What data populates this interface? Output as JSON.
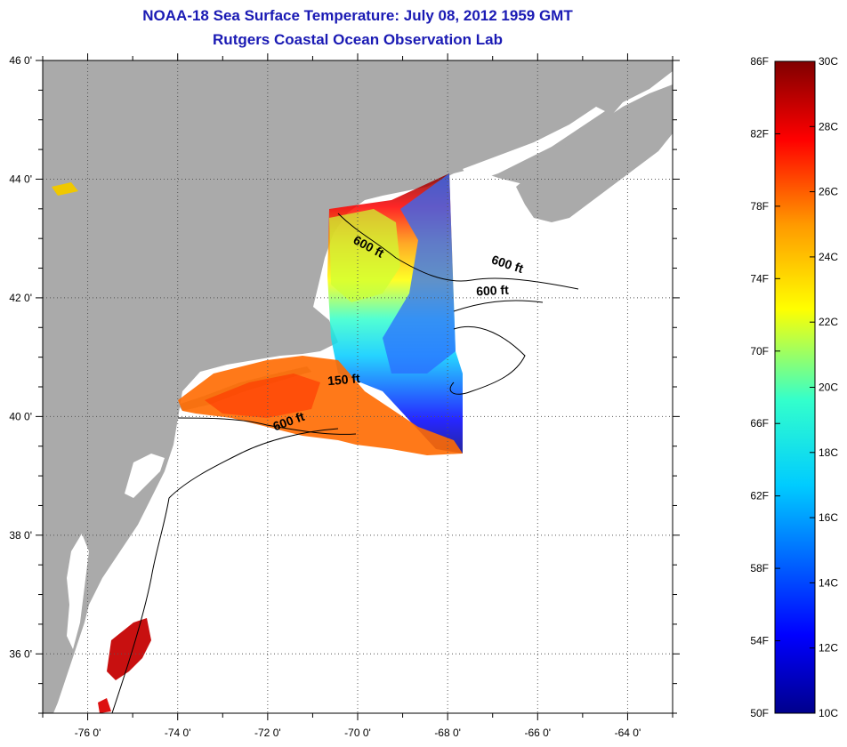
{
  "titles": {
    "line1": "NOAA-18 Sea Surface Temperature:  July 08, 2012 1959 GMT",
    "line2": "Rutgers Coastal Ocean Observation Lab"
  },
  "map": {
    "lon_range": [
      -77,
      -63
    ],
    "lat_range": [
      35,
      46
    ],
    "lon_ticks": [
      {
        "value": -76,
        "label": "-76 0'"
      },
      {
        "value": -74,
        "label": "-74 0'"
      },
      {
        "value": -72,
        "label": "-72 0'"
      },
      {
        "value": -70,
        "label": "-70 0'"
      },
      {
        "value": -68,
        "label": "-68 0'"
      },
      {
        "value": -66,
        "label": "-66 0'"
      },
      {
        "value": -64,
        "label": "-64 0'"
      }
    ],
    "lat_ticks": [
      {
        "value": 46,
        "label": "46 0'"
      },
      {
        "value": 44,
        "label": "44 0'"
      },
      {
        "value": 42,
        "label": "42 0'"
      },
      {
        "value": 40,
        "label": "40 0'"
      },
      {
        "value": 38,
        "label": "38 0'"
      },
      {
        "value": 36,
        "label": "36 0'"
      }
    ],
    "contour_labels": [
      {
        "text": "600 ft",
        "lon": -69.8,
        "lat": 42.8,
        "rotate": 28
      },
      {
        "text": "600 ft",
        "lon": -66.7,
        "lat": 42.5,
        "rotate": 18
      },
      {
        "text": "600 ft",
        "lon": -67.0,
        "lat": 42.05,
        "rotate": -3
      },
      {
        "text": "150 ft",
        "lon": -70.3,
        "lat": 40.55,
        "rotate": -5
      },
      {
        "text": "600 ft",
        "lon": -71.5,
        "lat": 39.85,
        "rotate": -20
      }
    ],
    "colors": {
      "land": "#aaaaaa",
      "ocean": "#ffffff",
      "grid": "#555555"
    }
  },
  "colorbar": {
    "celsius_range": [
      10,
      30
    ],
    "fahrenheit_labels": [
      "86F",
      "82F",
      "78F",
      "74F",
      "70F",
      "66F",
      "62F",
      "58F",
      "54F",
      "50F"
    ],
    "celsius_labels": [
      "30C",
      "28C",
      "26C",
      "24C",
      "22C",
      "20C",
      "18C",
      "16C",
      "14C",
      "12C",
      "10C"
    ]
  }
}
